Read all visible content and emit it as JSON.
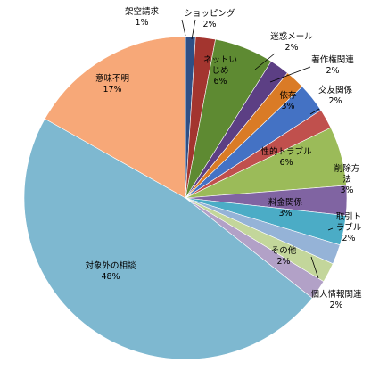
{
  "chart_data": {
    "type": "pie",
    "title": "",
    "start_angle_deg": 0,
    "direction": "clockwise",
    "slices": [
      {
        "label": "架空請求",
        "value": 1,
        "display": "1%",
        "color": "#2E4F86"
      },
      {
        "label": "ショッピング",
        "value": 2,
        "display": "2%",
        "color": "#A3352F"
      },
      {
        "label": "ネットいじめ",
        "value": 6,
        "display": "6%",
        "color": "#5E8A32"
      },
      {
        "label": "迷惑メール",
        "value": 2,
        "display": "2%",
        "color": "#5C3F84"
      },
      {
        "label": "著作権関連",
        "value": 2,
        "display": "2%",
        "color": "#DA7B26"
      },
      {
        "label": "依存",
        "value": 3,
        "display": "3%",
        "color": "#4472C4"
      },
      {
        "label": "交友関係",
        "value": 2,
        "display": "2%",
        "color": "#C0504D"
      },
      {
        "label": "性的トラブル",
        "value": 6,
        "display": "6%",
        "color": "#9BBB59"
      },
      {
        "label": "削除方法",
        "value": 3,
        "display": "3%",
        "color": "#8064A2"
      },
      {
        "label": "料金関係",
        "value": 3,
        "display": "3%",
        "color": "#4BACC6"
      },
      {
        "label": "取引トラブル",
        "value": 2,
        "display": "2%",
        "color": "#95B3D7"
      },
      {
        "label": "その他",
        "value": 2,
        "display": "2%",
        "color": "#C3D69B"
      },
      {
        "label": "個人情報関連",
        "value": 2,
        "display": "2%",
        "color": "#B2A1C7"
      },
      {
        "label": "対象外の相談",
        "value": 48,
        "display": "48%",
        "color": "#7EB8D0"
      },
      {
        "label": "意味不明",
        "value": 17,
        "display": "17%",
        "color": "#F7A878"
      }
    ]
  }
}
